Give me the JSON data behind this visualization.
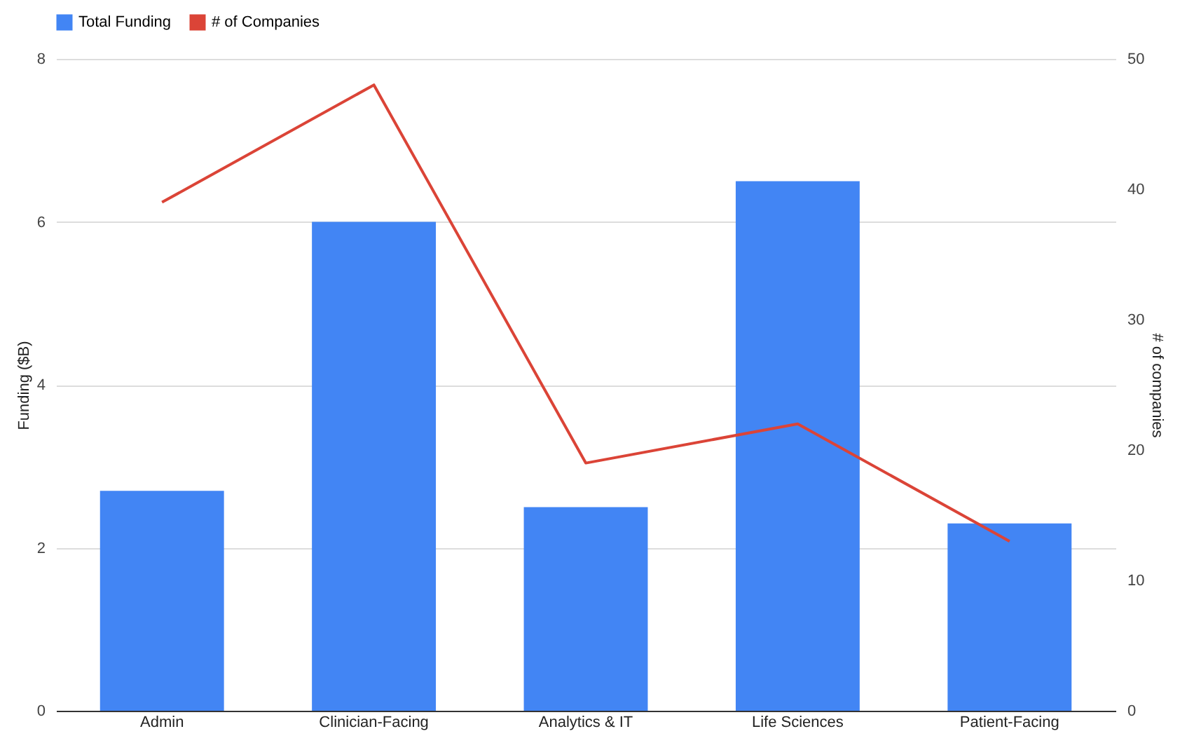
{
  "chart_data": {
    "type": "bar",
    "categories": [
      "Admin",
      "Clinician-Facing",
      "Analytics & IT",
      "Life Sciences",
      "Patient-Facing"
    ],
    "series": [
      {
        "name": "Total Funding",
        "color": "#4285f4",
        "values": [
          2.7,
          6.0,
          2.5,
          6.5,
          2.3
        ]
      },
      {
        "name": "# of Companies",
        "color": "#db4437",
        "type": "line",
        "axis": "y2",
        "values": [
          39,
          48,
          19,
          22,
          13
        ]
      }
    ],
    "ylabel": "Funding ($B)",
    "y2label": "# of companies",
    "ylim": [
      0,
      8
    ],
    "yticks": [
      0,
      2,
      4,
      6,
      8
    ],
    "y2lim": [
      0,
      50
    ],
    "y2ticks": [
      0,
      10,
      20,
      30,
      40,
      50
    ],
    "grid": "y",
    "legend": "top"
  }
}
